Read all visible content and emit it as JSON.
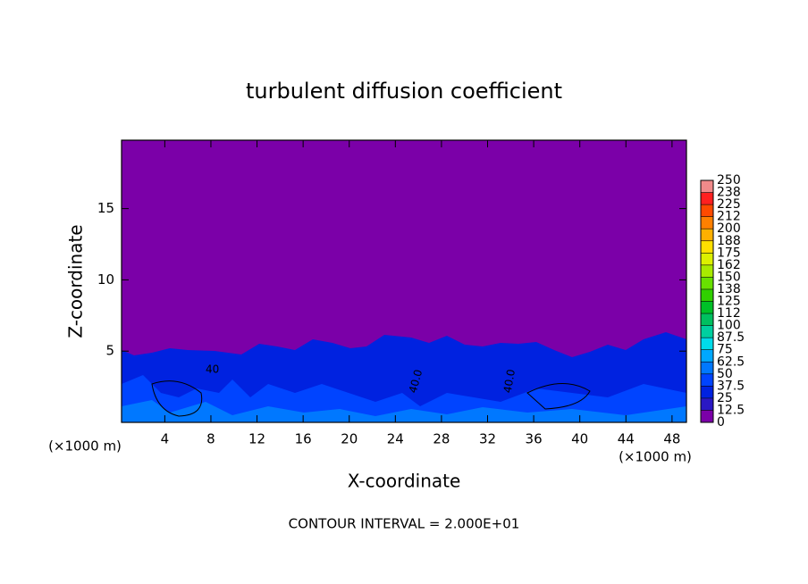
{
  "chart_data": {
    "type": "contour",
    "title": "turbulent diffusion coefficient",
    "x_label": "X-coordinate",
    "y_label": "Z-coordinate",
    "x_unit": "(×1000 m)",
    "footer": "CONTOUR INTERVAL = 2.000E+01",
    "contour_labels": [
      "40",
      "40.0",
      "40.0"
    ],
    "xlim": [
      0.25,
      49.25
    ],
    "xticks": [
      4,
      8,
      12,
      16,
      20,
      24,
      28,
      32,
      36,
      40,
      44,
      48
    ],
    "ylim": [
      0,
      19.8
    ],
    "yticks": [
      5,
      10,
      15
    ],
    "colorbar": {
      "ticks": [
        0,
        12.5,
        25,
        37.5,
        50,
        62.5,
        75,
        87.5,
        100,
        {
          "value": 112.5,
          "label": "112"
        },
        125,
        {
          "value": 137.5,
          "label": "138"
        },
        150,
        {
          "value": 162.5,
          "label": "162"
        },
        175,
        {
          "value": 187.5,
          "label": "188"
        },
        200,
        {
          "value": 212.5,
          "label": "212"
        },
        225,
        {
          "value": 237.5,
          "label": "238"
        },
        250
      ],
      "colors": [
        "#7b00a8",
        "#2a18c4",
        "#0022e0",
        "#0044ff",
        "#0078ff",
        "#00a8ff",
        "#00dcea",
        "#00d0a0",
        "#00c060",
        "#00c028",
        "#30d000",
        "#68e000",
        "#a8ea00",
        "#dcf000",
        "#ffe000",
        "#ffb000",
        "#ff8000",
        "#ff4a00",
        "#ff2020",
        "#f08a8a"
      ]
    }
  }
}
